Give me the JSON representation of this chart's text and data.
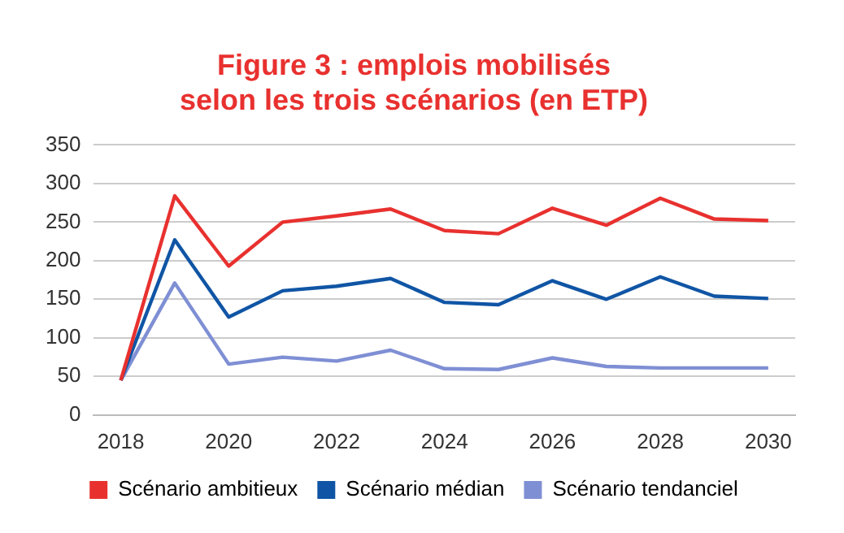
{
  "chart_data": {
    "type": "line",
    "title": "Figure 3 : emplois mobilisés\nselon les trois scénarios (en ETP)",
    "categories": [
      "2018",
      null,
      "2020",
      null,
      "2022",
      null,
      "2024",
      null,
      "2026",
      null,
      "2028",
      null,
      "2030"
    ],
    "series": [
      {
        "name": "Scénario ambitieux",
        "color": "#e8312f",
        "values": [
          45,
          284,
          193,
          250,
          258,
          267,
          239,
          235,
          268,
          246,
          281,
          254,
          252
        ]
      },
      {
        "name": "Scénario médian",
        "color": "#1055a5",
        "values": [
          45,
          227,
          127,
          161,
          167,
          177,
          146,
          143,
          174,
          150,
          179,
          154,
          151
        ]
      },
      {
        "name": "Scénario tendanciel",
        "color": "#7f8fd4",
        "values": [
          45,
          171,
          66,
          75,
          70,
          84,
          60,
          59,
          74,
          63,
          61,
          61,
          61
        ]
      }
    ],
    "ylim": [
      0,
      350
    ],
    "yticks": [
      0,
      50,
      100,
      150,
      200,
      250,
      300,
      350
    ],
    "grid": "y",
    "legend": "bottom",
    "marker": "none",
    "line_style": "solid"
  }
}
